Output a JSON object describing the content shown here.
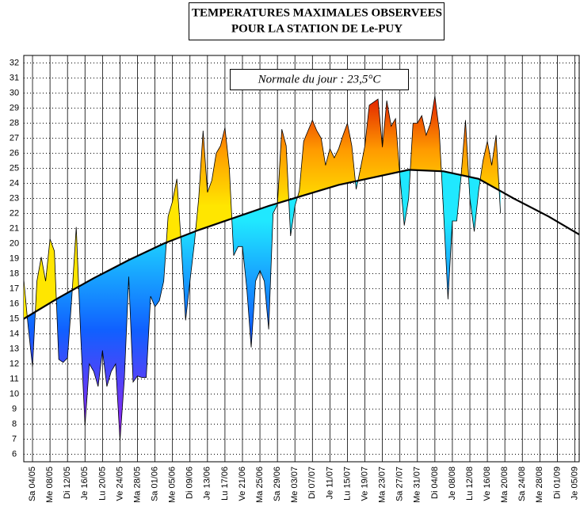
{
  "chart_data": {
    "type": "area",
    "title": [
      "TEMPERATURES MAXIMALES OBSERVEES",
      "POUR LA STATION DE Le-PUY"
    ],
    "annotation": "Normale du jour : 23,5°C",
    "xlim": [
      "02/05",
      "06/09"
    ],
    "ylim": [
      5.5,
      32.5
    ],
    "yticks": [
      6,
      7,
      8,
      9,
      10,
      11,
      12,
      13,
      14,
      15,
      16,
      17,
      18,
      19,
      20,
      21,
      22,
      23,
      24,
      25,
      26,
      27,
      28,
      29,
      30,
      31,
      32
    ],
    "xticks": [
      {
        "value": "04/05",
        "label": "Sa 04/05"
      },
      {
        "value": "08/05",
        "label": "Me 08/05"
      },
      {
        "value": "12/05",
        "label": "Di 12/05"
      },
      {
        "value": "16/05",
        "label": "Je 16/05"
      },
      {
        "value": "20/05",
        "label": "Lu 20/05"
      },
      {
        "value": "24/05",
        "label": "Ve 24/05"
      },
      {
        "value": "28/05",
        "label": "Ma 28/05"
      },
      {
        "value": "01/06",
        "label": "Sa 01/06"
      },
      {
        "value": "05/06",
        "label": "Me 05/06"
      },
      {
        "value": "09/06",
        "label": "Di 09/06"
      },
      {
        "value": "13/06",
        "label": "Je 13/06"
      },
      {
        "value": "17/06",
        "label": "Lu 17/06"
      },
      {
        "value": "21/06",
        "label": "Ve 21/06"
      },
      {
        "value": "25/06",
        "label": "Ma 25/06"
      },
      {
        "value": "29/06",
        "label": "Sa 29/06"
      },
      {
        "value": "03/07",
        "label": "Me 03/07"
      },
      {
        "value": "07/07",
        "label": "Di 07/07"
      },
      {
        "value": "11/07",
        "label": "Je 11/07"
      },
      {
        "value": "15/07",
        "label": "Lu 15/07"
      },
      {
        "value": "19/07",
        "label": "Ve 19/07"
      },
      {
        "value": "23/07",
        "label": "Ma 23/07"
      },
      {
        "value": "27/07",
        "label": "Sa 27/07"
      },
      {
        "value": "31/07",
        "label": "Me 31/07"
      },
      {
        "value": "04/08",
        "label": "Di 04/08"
      },
      {
        "value": "08/08",
        "label": "Je 08/08"
      },
      {
        "value": "12/08",
        "label": "Lu 12/08"
      },
      {
        "value": "16/08",
        "label": "Ve 16/08"
      },
      {
        "value": "20/08",
        "label": "Ma 20/08"
      },
      {
        "value": "24/08",
        "label": "Sa 24/08"
      },
      {
        "value": "28/08",
        "label": "Me 28/08"
      },
      {
        "value": "01/09",
        "label": "Di 01/09"
      },
      {
        "value": "05/09",
        "label": "Je 05/09"
      }
    ],
    "grid": true,
    "above_colors": [
      "#ffe600",
      "#ff9a00",
      "#e01800"
    ],
    "below_colors": [
      "#20e8ff",
      "#1060ff",
      "#a020f0"
    ],
    "observed": {
      "color": "#000000",
      "x": [
        "02/05",
        "03/05",
        "04/05",
        "05/05",
        "06/05",
        "07/05",
        "08/05",
        "09/05",
        "10/05",
        "11/05",
        "12/05",
        "13/05",
        "14/05",
        "15/05",
        "16/05",
        "17/05",
        "18/05",
        "19/05",
        "20/05",
        "21/05",
        "22/05",
        "23/05",
        "24/05",
        "25/05",
        "26/05",
        "27/05",
        "28/05",
        "29/05",
        "30/05",
        "31/05",
        "01/06",
        "02/06",
        "03/06",
        "04/06",
        "05/06",
        "06/06",
        "07/06",
        "08/06",
        "09/06",
        "10/06",
        "11/06",
        "12/06",
        "13/06",
        "14/06",
        "15/06",
        "16/06",
        "17/06",
        "18/06",
        "19/06",
        "20/06",
        "21/06",
        "22/06",
        "23/06",
        "24/06",
        "25/06",
        "26/06",
        "27/06",
        "28/06",
        "29/06",
        "30/06",
        "01/07",
        "02/07",
        "03/07",
        "04/07",
        "05/07",
        "06/07",
        "07/07",
        "08/07",
        "09/07",
        "10/07",
        "11/07",
        "12/07",
        "13/07",
        "14/07",
        "15/07",
        "16/07",
        "17/07",
        "18/07",
        "19/07",
        "20/07",
        "21/07",
        "22/07",
        "23/07",
        "24/07",
        "25/07",
        "26/07",
        "27/07",
        "28/07",
        "29/07",
        "30/07",
        "31/07",
        "01/08",
        "02/08",
        "03/08",
        "04/08",
        "05/08",
        "06/08",
        "07/08",
        "08/08",
        "09/08",
        "10/08",
        "11/08",
        "12/08",
        "13/08",
        "14/08",
        "15/08",
        "16/08",
        "17/08",
        "18/08",
        "19/08"
      ],
      "values": [
        17.6,
        14.5,
        11.8,
        17.5,
        19.1,
        17.5,
        20.3,
        19.5,
        12.3,
        12.1,
        12.4,
        16.5,
        21.1,
        14,
        7.9,
        12,
        11.5,
        10.5,
        12.9,
        10.5,
        11.5,
        12,
        6.9,
        11,
        17.8,
        10.8,
        11.2,
        11.1,
        11.1,
        16.5,
        15.8,
        16.2,
        17.5,
        21.8,
        22.8,
        24.3,
        20,
        14.9,
        17.5,
        20,
        23,
        27.5,
        23.4,
        24.2,
        26,
        26.5,
        27.7,
        25,
        19.2,
        19.8,
        19.8,
        17,
        13.1,
        17.5,
        18.2,
        17.5,
        14.3,
        22,
        22.6,
        27.6,
        26.5,
        20.5,
        22.5,
        23.5,
        26.8,
        27.5,
        28.2,
        27.5,
        27,
        25.2,
        26.3,
        25.7,
        26.3,
        27.2,
        28,
        26.5,
        23.6,
        25,
        26.5,
        29.2,
        29.4,
        29.6,
        26.4,
        29.5,
        27.8,
        28.3,
        24.5,
        21.2,
        23,
        28,
        28,
        28.5,
        27.2,
        28,
        29.8,
        27.5,
        22,
        16.3,
        21.5,
        21.5,
        24.5,
        28.2,
        23,
        20.8,
        23.5,
        25.5,
        26.8,
        25.2,
        27.2,
        22
      ]
    },
    "normal": {
      "color": "#000000",
      "x": [
        "02/05",
        "10/05",
        "18/05",
        "26/05",
        "03/06",
        "11/06",
        "19/06",
        "27/06",
        "05/07",
        "13/07",
        "21/07",
        "29/07",
        "06/08",
        "14/08",
        "22/08",
        "30/08",
        "06/09"
      ],
      "values": [
        15.0,
        16.4,
        17.7,
        18.9,
        20.0,
        20.9,
        21.7,
        22.5,
        23.2,
        23.9,
        24.4,
        24.9,
        24.8,
        24.3,
        23.0,
        21.8,
        20.6
      ]
    }
  }
}
